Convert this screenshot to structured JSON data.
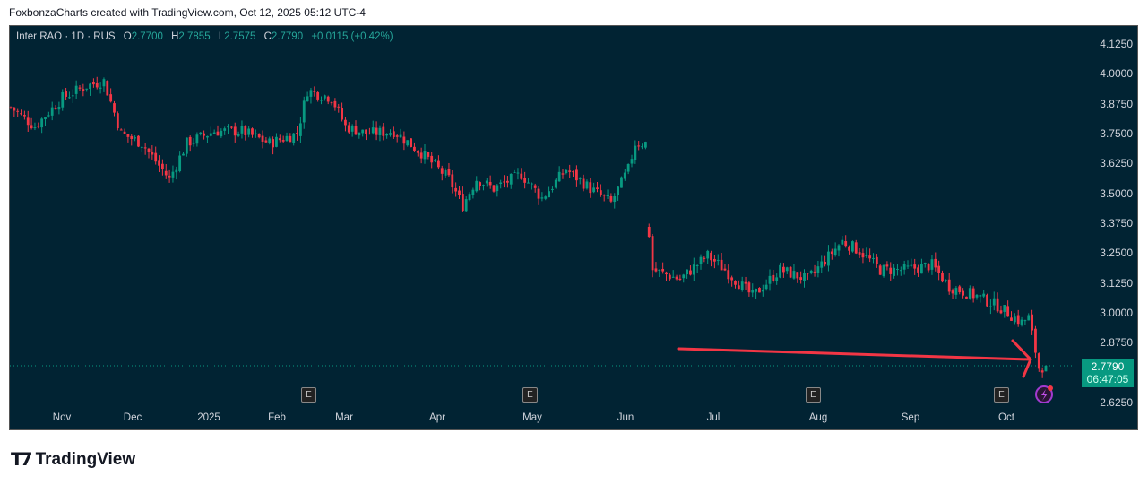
{
  "header": {
    "attribution": "FoxbonzaCharts created with TradingView.com, Oct 12, 2025 05:12 UTC-4"
  },
  "legend": {
    "symbol": "Inter RAO · 1D · RUS",
    "o_label": "O",
    "o": "2.7700",
    "h_label": "H",
    "h": "2.7855",
    "l_label": "L",
    "l": "2.7575",
    "c_label": "C",
    "c": "2.7790",
    "change": "+0.0115 (+0.42%)"
  },
  "price_axis": [
    "4.1250",
    "4.0000",
    "3.8750",
    "3.7500",
    "3.6250",
    "3.5000",
    "3.3750",
    "3.2500",
    "3.1250",
    "3.0000",
    "2.8750",
    "2.6250"
  ],
  "last_price": {
    "price": "2.7790",
    "countdown": "06:47:05"
  },
  "time_axis": [
    "Nov",
    "Dec",
    "2025",
    "Feb",
    "Mar",
    "Apr",
    "May",
    "Jun",
    "Jul",
    "Aug",
    "Sep",
    "Oct"
  ],
  "earnings_marker": "E",
  "colors": {
    "up": "#089981",
    "down": "#f23645",
    "bg": "#012333",
    "arrow": "#f23645"
  },
  "brand": "TradingView",
  "chart_data": {
    "type": "candlestick",
    "ylim": [
      2.625,
      4.125
    ],
    "anchors": [
      [
        0,
        3.86
      ],
      [
        7,
        3.78
      ],
      [
        15,
        3.9
      ],
      [
        22,
        3.95
      ],
      [
        27,
        3.97
      ],
      [
        32,
        3.75
      ],
      [
        38,
        3.71
      ],
      [
        46,
        3.56
      ],
      [
        51,
        3.71
      ],
      [
        59,
        3.76
      ],
      [
        67,
        3.76
      ],
      [
        75,
        3.71
      ],
      [
        83,
        3.75
      ],
      [
        86,
        3.93
      ],
      [
        93,
        3.9
      ],
      [
        97,
        3.78
      ],
      [
        103,
        3.75
      ],
      [
        111,
        3.76
      ],
      [
        119,
        3.67
      ],
      [
        127,
        3.56
      ],
      [
        131,
        3.45
      ],
      [
        135,
        3.56
      ],
      [
        140,
        3.52
      ],
      [
        148,
        3.58
      ],
      [
        154,
        3.48
      ],
      [
        161,
        3.6
      ],
      [
        168,
        3.52
      ],
      [
        174,
        3.46
      ],
      [
        179,
        3.6
      ],
      [
        181,
        3.71
      ],
      [
        184,
        3.71
      ],
      [
        185,
        3.33
      ],
      [
        186,
        3.18
      ],
      [
        194,
        3.14
      ],
      [
        202,
        3.24
      ],
      [
        207,
        3.18
      ],
      [
        215,
        3.07
      ],
      [
        223,
        3.18
      ],
      [
        231,
        3.14
      ],
      [
        236,
        3.22
      ],
      [
        241,
        3.3
      ],
      [
        246,
        3.26
      ],
      [
        252,
        3.18
      ],
      [
        259,
        3.18
      ],
      [
        267,
        3.2
      ],
      [
        272,
        3.11
      ],
      [
        280,
        3.07
      ],
      [
        286,
        3.03
      ],
      [
        293,
        2.96
      ],
      [
        295,
        2.98
      ],
      [
        298,
        2.77
      ],
      [
        300,
        2.78
      ]
    ]
  }
}
